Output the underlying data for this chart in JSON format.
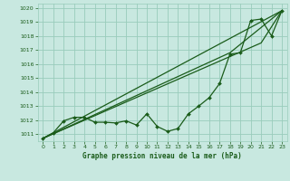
{
  "title": "Graphe pression niveau de la mer (hPa)",
  "bg_color": "#c8e8e0",
  "grid_color": "#99ccbb",
  "line_color": "#1a5c1a",
  "xlim": [
    -0.5,
    23.5
  ],
  "ylim": [
    1010.5,
    1020.3
  ],
  "xticks": [
    0,
    1,
    2,
    3,
    4,
    5,
    6,
    7,
    8,
    9,
    10,
    11,
    12,
    13,
    14,
    15,
    16,
    17,
    18,
    19,
    20,
    21,
    22,
    23
  ],
  "yticks": [
    1011,
    1012,
    1013,
    1014,
    1015,
    1016,
    1017,
    1018,
    1019,
    1020
  ],
  "series1_x": [
    0,
    1,
    2,
    3,
    4,
    5,
    6,
    7,
    8,
    9,
    10,
    11,
    12,
    13,
    14,
    15,
    16,
    17,
    18,
    19,
    20,
    21,
    22,
    23
  ],
  "series1_y": [
    1010.7,
    1011.1,
    1011.95,
    1012.2,
    1012.2,
    1011.85,
    1011.85,
    1011.8,
    1011.95,
    1011.65,
    1012.45,
    1011.55,
    1011.2,
    1011.4,
    1012.45,
    1013.0,
    1013.6,
    1014.6,
    1016.7,
    1016.8,
    1019.1,
    1019.2,
    1018.0,
    1019.8
  ],
  "line1_x": [
    0,
    23
  ],
  "line1_y": [
    1010.7,
    1019.8
  ],
  "line2_x": [
    0,
    21,
    23
  ],
  "line2_y": [
    1010.7,
    1017.5,
    1019.8
  ],
  "line3_x": [
    0,
    18,
    23
  ],
  "line3_y": [
    1010.7,
    1016.8,
    1019.8
  ]
}
